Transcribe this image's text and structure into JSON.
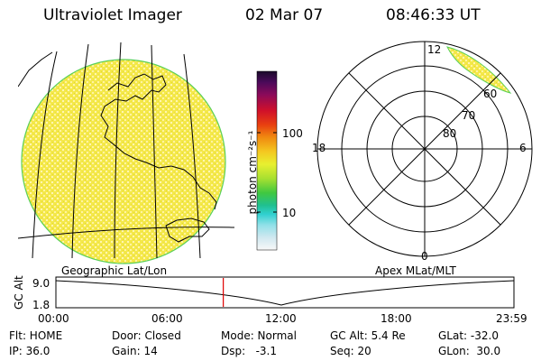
{
  "header": {
    "title": "Ultraviolet Imager",
    "date": "02 Mar 07",
    "time": "08:46:33 UT"
  },
  "colorbar": {
    "unit_label": "photon cm⁻²s⁻¹",
    "tick_100": "100",
    "tick_10": "10"
  },
  "left_panel": {
    "label": "Geographic Lat/Lon",
    "fill_color": "#f4ea48"
  },
  "polar_panel": {
    "label": "Apex MLat/MLT",
    "mlt_top": "12",
    "mlt_left": "18",
    "mlt_right": "6",
    "mlt_bottom": "0",
    "lat_60": "60",
    "lat_70": "70",
    "lat_80": "80"
  },
  "altitude_plot": {
    "ylabel": "GC Alt",
    "ytick_top": "9.0",
    "ytick_bottom": "1.8",
    "x_ticks": [
      "00:00",
      "06:00",
      "12:00",
      "18:00",
      "23:59"
    ],
    "current_time_hours": 8.77
  },
  "status": {
    "flt": "Flt: HOME",
    "ip": "IP: 36.0",
    "door": "Door: Closed",
    "gain": "Gain: 14",
    "mode": "Mode: Normal",
    "dsp": "Dsp:   -3.1",
    "gc_alt": "GC Alt: 5.4 Re",
    "seq": "Seq: 20",
    "glat": "GLat: -32.0",
    "glon": "GLon:  30.0"
  }
}
